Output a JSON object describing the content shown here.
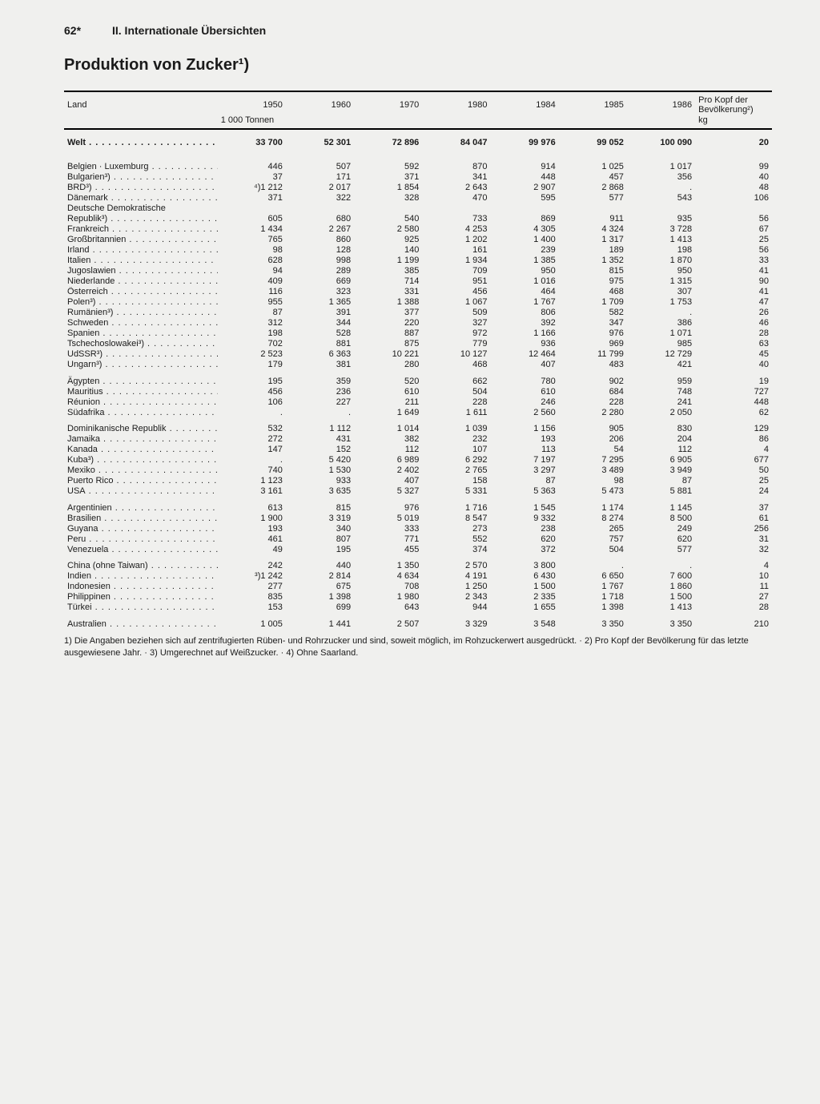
{
  "page_number": "62*",
  "section_label": "II. Internationale Übersichten",
  "title": "Produktion von Zucker¹)",
  "table": {
    "head_land": "Land",
    "years": [
      "1950",
      "1960",
      "1970",
      "1980",
      "1984",
      "1985",
      "1986"
    ],
    "perCapitaHead1": "Pro Kopf der",
    "perCapitaHead2": "Bevölkerung²)",
    "unit_left": "1 000 Tonnen",
    "unit_right": "kg",
    "groups": [
      {
        "class": "world",
        "rows": [
          {
            "c": "Welt",
            "v": [
              "33 700",
              "52 301",
              "72 896",
              "84 047",
              "99 976",
              "99 052",
              "100 090",
              "20"
            ]
          }
        ]
      },
      {
        "rows": [
          {
            "c": "Belgien · Luxemburg",
            "v": [
              "446",
              "507",
              "592",
              "870",
              "914",
              "1 025",
              "1 017",
              "99"
            ]
          },
          {
            "c": "Bulgarien³)",
            "v": [
              "37",
              "171",
              "371",
              "341",
              "448",
              "457",
              "356",
              "40"
            ]
          },
          {
            "c": "BRD³)",
            "v": [
              "⁴)1 212",
              "2 017",
              "1 854",
              "2 643",
              "2 907",
              "2 868",
              ".",
              "48"
            ]
          },
          {
            "c": "Dänemark",
            "v": [
              "371",
              "322",
              "328",
              "470",
              "595",
              "577",
              "543",
              "106"
            ]
          },
          {
            "c": "Deutsche Demokratische",
            "nodots": true,
            "v": [
              "",
              "",
              "",
              "",
              "",
              "",
              "",
              ""
            ]
          },
          {
            "c": "  Republik³)",
            "v": [
              "605",
              "680",
              "540",
              "733",
              "869",
              "911",
              "935",
              "56"
            ]
          },
          {
            "c": "Frankreich",
            "v": [
              "1 434",
              "2 267",
              "2 580",
              "4 253",
              "4 305",
              "4 324",
              "3 728",
              "67"
            ]
          },
          {
            "c": "Großbritannien",
            "v": [
              "765",
              "860",
              "925",
              "1 202",
              "1 400",
              "1 317",
              "1 413",
              "25"
            ]
          },
          {
            "c": "Irland",
            "v": [
              "98",
              "128",
              "140",
              "161",
              "239",
              "189",
              "198",
              "56"
            ]
          },
          {
            "c": "Italien",
            "v": [
              "628",
              "998",
              "1 199",
              "1 934",
              "1 385",
              "1 352",
              "1 870",
              "33"
            ]
          },
          {
            "c": "Jugoslawien",
            "v": [
              "94",
              "289",
              "385",
              "709",
              "950",
              "815",
              "950",
              "41"
            ]
          },
          {
            "c": "Niederlande",
            "v": [
              "409",
              "669",
              "714",
              "951",
              "1 016",
              "975",
              "1 315",
              "90"
            ]
          },
          {
            "c": "Österreich",
            "v": [
              "116",
              "323",
              "331",
              "456",
              "464",
              "468",
              "307",
              "41"
            ]
          },
          {
            "c": "Polen³)",
            "v": [
              "955",
              "1 365",
              "1 388",
              "1 067",
              "1 767",
              "1 709",
              "1 753",
              "47"
            ]
          },
          {
            "c": "Rumänien³)",
            "v": [
              "87",
              "391",
              "377",
              "509",
              "806",
              "582",
              ".",
              "26"
            ]
          },
          {
            "c": "Schweden",
            "v": [
              "312",
              "344",
              "220",
              "327",
              "392",
              "347",
              "386",
              "46"
            ]
          },
          {
            "c": "Spanien",
            "v": [
              "198",
              "528",
              "887",
              "972",
              "1 166",
              "976",
              "1 071",
              "28"
            ]
          },
          {
            "c": "Tschechoslowakei³)",
            "v": [
              "702",
              "881",
              "875",
              "779",
              "936",
              "969",
              "985",
              "63"
            ]
          },
          {
            "c": "UdSSR³)",
            "v": [
              "2 523",
              "6 363",
              "10 221",
              "10 127",
              "12 464",
              "11 799",
              "12 729",
              "45"
            ]
          },
          {
            "c": "Ungarn³)",
            "v": [
              "179",
              "381",
              "280",
              "468",
              "407",
              "483",
              "421",
              "40"
            ]
          }
        ]
      },
      {
        "rows": [
          {
            "c": "Ägypten",
            "v": [
              "195",
              "359",
              "520",
              "662",
              "780",
              "902",
              "959",
              "19"
            ]
          },
          {
            "c": "Mauritius",
            "v": [
              "456",
              "236",
              "610",
              "504",
              "610",
              "684",
              "748",
              "727"
            ]
          },
          {
            "c": "Réunion",
            "v": [
              "106",
              "227",
              "211",
              "228",
              "246",
              "228",
              "241",
              "448"
            ]
          },
          {
            "c": "Südafrika",
            "v": [
              ".",
              ".",
              "1 649",
              "1 611",
              "2 560",
              "2 280",
              "2 050",
              "62"
            ]
          }
        ]
      },
      {
        "rows": [
          {
            "c": "Dominikanische Republik",
            "v": [
              "532",
              "1 112",
              "1 014",
              "1 039",
              "1 156",
              "905",
              "830",
              "129"
            ]
          },
          {
            "c": "Jamaika",
            "v": [
              "272",
              "431",
              "382",
              "232",
              "193",
              "206",
              "204",
              "86"
            ]
          },
          {
            "c": "Kanada",
            "v": [
              "147",
              "152",
              "112",
              "107",
              "113",
              "54",
              "112",
              "4"
            ]
          },
          {
            "c": "Kuba³)",
            "v": [
              ".",
              "5 420",
              "6 989",
              "6 292",
              "7 197",
              "7 295",
              "6 905",
              "677"
            ]
          },
          {
            "c": "Mexiko",
            "v": [
              "740",
              "1 530",
              "2 402",
              "2 765",
              "3 297",
              "3 489",
              "3 949",
              "50"
            ]
          },
          {
            "c": "Puerto Rico",
            "v": [
              "1 123",
              "933",
              "407",
              "158",
              "87",
              "98",
              "87",
              "25"
            ]
          },
          {
            "c": "USA",
            "v": [
              "3 161",
              "3 635",
              "5 327",
              "5 331",
              "5 363",
              "5 473",
              "5 881",
              "24"
            ]
          }
        ]
      },
      {
        "rows": [
          {
            "c": "Argentinien",
            "v": [
              "613",
              "815",
              "976",
              "1 716",
              "1 545",
              "1 174",
              "1 145",
              "37"
            ]
          },
          {
            "c": "Brasilien",
            "v": [
              "1 900",
              "3 319",
              "5 019",
              "8 547",
              "9 332",
              "8 274",
              "8 500",
              "61"
            ]
          },
          {
            "c": "Guyana",
            "v": [
              "193",
              "340",
              "333",
              "273",
              "238",
              "265",
              "249",
              "256"
            ]
          },
          {
            "c": "Peru",
            "v": [
              "461",
              "807",
              "771",
              "552",
              "620",
              "757",
              "620",
              "31"
            ]
          },
          {
            "c": "Venezuela",
            "v": [
              "49",
              "195",
              "455",
              "374",
              "372",
              "504",
              "577",
              "32"
            ]
          }
        ]
      },
      {
        "rows": [
          {
            "c": "China (ohne Taiwan)",
            "v": [
              "242",
              "440",
              "1 350",
              "2 570",
              "3 800",
              ".",
              ".",
              "4"
            ]
          },
          {
            "c": "Indien",
            "v": [
              "³)1 242",
              "2 814",
              "4 634",
              "4 191",
              "6 430",
              "6 650",
              "7 600",
              "10"
            ]
          },
          {
            "c": "Indonesien",
            "v": [
              "277",
              "675",
              "708",
              "1 250",
              "1 500",
              "1 767",
              "1 860",
              "11"
            ]
          },
          {
            "c": "Philippinen",
            "v": [
              "835",
              "1 398",
              "1 980",
              "2 343",
              "2 335",
              "1 718",
              "1 500",
              "27"
            ]
          },
          {
            "c": "Türkei",
            "v": [
              "153",
              "699",
              "643",
              "944",
              "1 655",
              "1 398",
              "1 413",
              "28"
            ]
          }
        ]
      },
      {
        "rows": [
          {
            "c": "Australien",
            "v": [
              "1 005",
              "1 441",
              "2 507",
              "3 329",
              "3 548",
              "3 350",
              "3 350",
              "210"
            ]
          }
        ]
      }
    ]
  },
  "footnote": "1) Die Angaben beziehen sich auf zentrifugierten Rüben- und Rohrzucker und sind, soweit möglich, im Rohzuckerwert ausgedrückt. · 2) Pro Kopf der Bevölkerung für das letzte ausgewiesene Jahr. · 3) Umgerechnet auf Weißzucker. · 4) Ohne Saarland."
}
